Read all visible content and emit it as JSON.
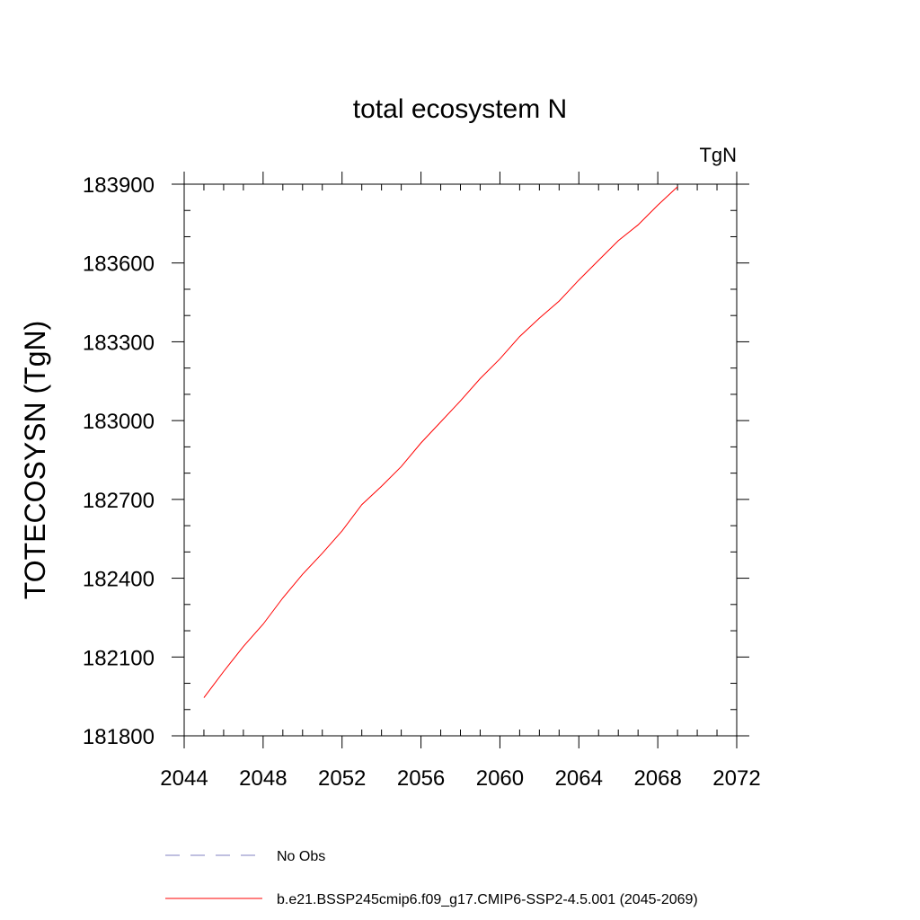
{
  "chart_data": {
    "type": "line",
    "title": "total ecosystem N",
    "units_label": "TgN",
    "ylabel": "TOTECOSYSN  (TgN)",
    "xlabel": "",
    "xlim": [
      2044,
      2072
    ],
    "ylim": [
      181800,
      183900
    ],
    "xticks": [
      2044,
      2048,
      2052,
      2056,
      2060,
      2064,
      2068,
      2072
    ],
    "yticks": [
      181800,
      182100,
      182400,
      182700,
      183000,
      183300,
      183600,
      183900
    ],
    "xtick_labels": [
      "2044",
      "2048",
      "2052",
      "2056",
      "2060",
      "2064",
      "2068",
      "2072"
    ],
    "ytick_labels": [
      "181800",
      "182100",
      "182400",
      "182700",
      "183000",
      "183300",
      "183600",
      "183900"
    ],
    "grid": false,
    "series": [
      {
        "name": "b.e21.BSSP245cmip6.f09_g17.CMIP6-SSP2-4.5.001 (2045-2069)",
        "color": "#ff0000",
        "dash": "solid",
        "x": [
          2045,
          2046,
          2047,
          2048,
          2049,
          2050,
          2051,
          2052,
          2053,
          2054,
          2055,
          2056,
          2057,
          2058,
          2059,
          2060,
          2061,
          2062,
          2063,
          2064,
          2065,
          2066,
          2067,
          2068,
          2069
        ],
        "y": [
          181945,
          182045,
          182140,
          182225,
          182325,
          182415,
          182495,
          182580,
          182680,
          182750,
          182825,
          182915,
          182995,
          183075,
          183160,
          183235,
          183320,
          183390,
          183455,
          183535,
          183610,
          183685,
          183745,
          183820,
          183890
        ]
      }
    ],
    "legend": [
      {
        "label": "No Obs",
        "color": "#8080c0",
        "dash": "dashed"
      },
      {
        "label": "b.e21.BSSP245cmip6.f09_g17.CMIP6-SSP2-4.5.001 (2045-2069)",
        "color": "#ff0000",
        "dash": "solid"
      }
    ],
    "legend_placement": "bottom-left"
  }
}
